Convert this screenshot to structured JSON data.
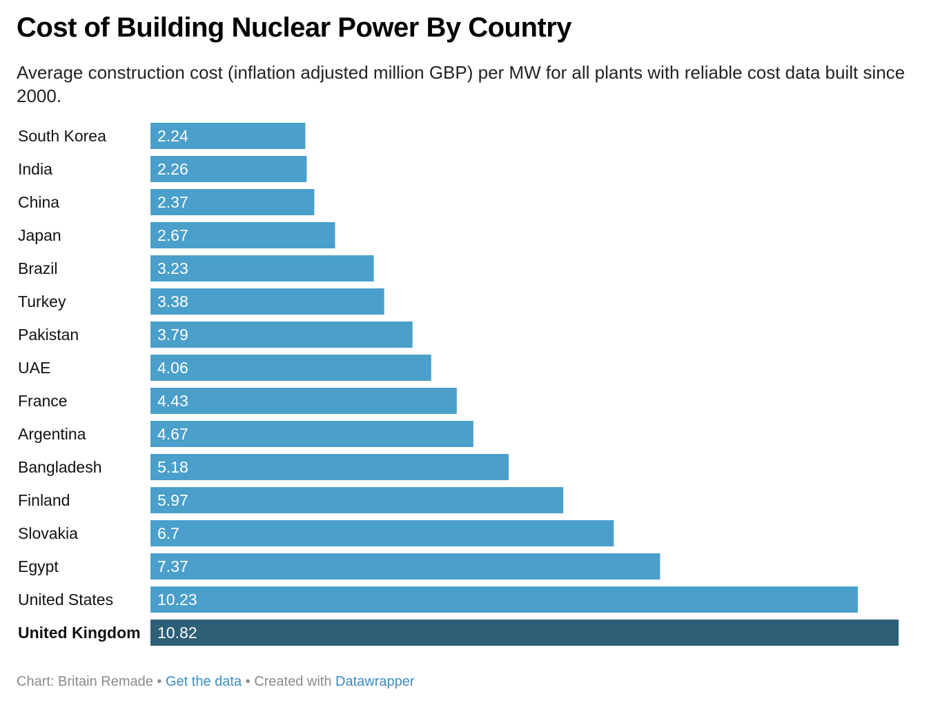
{
  "chart_data": {
    "type": "bar",
    "title": "Cost of Building Nuclear Power By Country",
    "subtitle": "Average construction cost (inflation adjusted million GBP) per MW for all plants with reliable cost data built since 2000.",
    "categories": [
      "South Korea",
      "India",
      "China",
      "Japan",
      "Brazil",
      "Turkey",
      "Pakistan",
      "UAE",
      "France",
      "Argentina",
      "Bangladesh",
      "Finland",
      "Slovakia",
      "Egypt",
      "United States",
      "United Kingdom"
    ],
    "values": [
      2.24,
      2.26,
      2.37,
      2.67,
      3.23,
      3.38,
      3.79,
      4.06,
      4.43,
      4.67,
      5.18,
      5.97,
      6.7,
      7.37,
      10.23,
      10.82
    ],
    "color": "#4a9fcb",
    "highlight": "United Kingdom",
    "highlight_color": "#2d5f77",
    "footer": [
      {
        "text": "Chart: Britain Remade"
      },
      {
        "text": " • "
      },
      {
        "text": "Get the data",
        "link": true
      },
      {
        "text": " • Created with "
      },
      {
        "text": "Datawrapper",
        "link": true
      }
    ]
  }
}
